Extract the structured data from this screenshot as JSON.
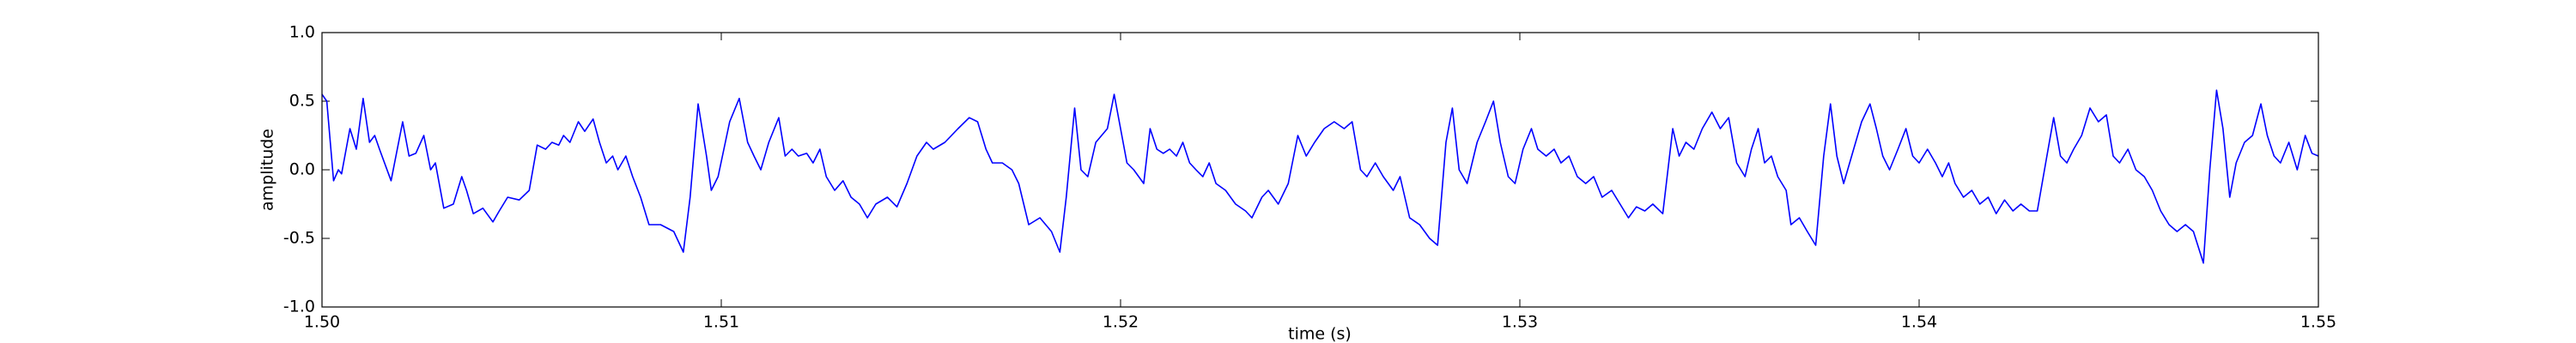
{
  "chart_data": {
    "type": "line",
    "xlabel": "time (s)",
    "ylabel": "amplitude",
    "color": "#0000ff",
    "x": [
      1.5,
      1.50012,
      1.50029,
      1.50041,
      1.50049,
      1.5007,
      1.50086,
      1.50103,
      1.50119,
      1.50132,
      1.50144,
      1.50173,
      1.50202,
      1.50218,
      1.50235,
      1.50255,
      1.50272,
      1.50284,
      1.50305,
      1.50329,
      1.5035,
      1.50362,
      1.50379,
      1.50403,
      1.50428,
      1.50444,
      1.50465,
      1.50494,
      1.50519,
      1.50539,
      1.5056,
      1.50576,
      1.50593,
      1.50605,
      1.50621,
      1.50642,
      1.50658,
      1.50679,
      1.50695,
      1.50712,
      1.50728,
      1.50741,
      1.50761,
      1.50778,
      1.50798,
      1.50819,
      1.50848,
      1.50881,
      1.50905,
      1.50922,
      1.50942,
      1.50963,
      1.50975,
      1.50992,
      1.51021,
      1.51045,
      1.51066,
      1.51082,
      1.51099,
      1.51119,
      1.51144,
      1.5116,
      1.51177,
      1.51193,
      1.51214,
      1.5123,
      1.51247,
      1.51263,
      1.51284,
      1.51305,
      1.51325,
      1.51346,
      1.51366,
      1.51387,
      1.51416,
      1.5144,
      1.51465,
      1.5149,
      1.51514,
      1.51531,
      1.5156,
      1.51593,
      1.51621,
      1.51642,
      1.51663,
      1.51679,
      1.51704,
      1.51728,
      1.51745,
      1.5177,
      1.51798,
      1.51827,
      1.51848,
      1.51864,
      1.51885,
      1.51901,
      1.51918,
      1.51938,
      1.51967,
      1.51984,
      1.52,
      1.52016,
      1.52033,
      1.52058,
      1.52074,
      1.52091,
      1.52107,
      1.52123,
      1.5214,
      1.52156,
      1.52173,
      1.52189,
      1.52206,
      1.52222,
      1.52239,
      1.52263,
      1.52288,
      1.52313,
      1.52329,
      1.52354,
      1.5237,
      1.52395,
      1.5242,
      1.52444,
      1.52465,
      1.52486,
      1.5251,
      1.52535,
      1.5256,
      1.5258,
      1.52601,
      1.52617,
      1.52638,
      1.52658,
      1.52683,
      1.527,
      1.52724,
      1.52749,
      1.52774,
      1.52794,
      1.52815,
      1.52831,
      1.52848,
      1.52868,
      1.52893,
      1.52914,
      1.52934,
      1.52951,
      1.52971,
      1.52988,
      1.53008,
      1.53029,
      1.53045,
      1.53066,
      1.53086,
      1.53103,
      1.53123,
      1.53144,
      1.53165,
      1.53185,
      1.53206,
      1.5323,
      1.53251,
      1.53272,
      1.53292,
      1.53313,
      1.53333,
      1.53358,
      1.53383,
      1.53399,
      1.53416,
      1.53436,
      1.53457,
      1.53481,
      1.53502,
      1.53523,
      1.53543,
      1.53564,
      1.5358,
      1.53597,
      1.53613,
      1.5363,
      1.53646,
      1.53667,
      1.53679,
      1.537,
      1.5372,
      1.53741,
      1.53761,
      1.53778,
      1.53794,
      1.53811,
      1.53831,
      1.53856,
      1.53877,
      1.53893,
      1.53909,
      1.53926,
      1.53947,
      1.53967,
      1.53984,
      1.54,
      1.54021,
      1.54041,
      1.54058,
      1.54074,
      1.5409,
      1.54111,
      1.54132,
      1.54152,
      1.54173,
      1.54193,
      1.54214,
      1.54235,
      1.54255,
      1.54276,
      1.54296,
      1.54317,
      1.54337,
      1.54354,
      1.5437,
      1.54387,
      1.54407,
      1.54428,
      1.54449,
      1.54469,
      1.54486,
      1.54502,
      1.54523,
      1.54543,
      1.54564,
      1.54584,
      1.54605,
      1.54626,
      1.54646,
      1.54667,
      1.54687,
      1.54712,
      1.54728,
      1.54745,
      1.54761,
      1.54778,
      1.54794,
      1.54815,
      1.54835,
      1.54856,
      1.54872,
      1.54889,
      1.54905,
      1.54926,
      1.54947,
      1.54967,
      1.54984,
      1.55
    ],
    "values": [
      0.55,
      0.5,
      -0.08,
      0.0,
      -0.03,
      0.3,
      0.15,
      0.52,
      0.2,
      0.25,
      0.15,
      -0.08,
      0.35,
      0.1,
      0.12,
      0.25,
      0.0,
      0.05,
      -0.28,
      -0.25,
      -0.05,
      -0.15,
      -0.32,
      -0.28,
      -0.38,
      -0.3,
      -0.2,
      -0.22,
      -0.15,
      0.18,
      0.15,
      0.2,
      0.18,
      0.25,
      0.2,
      0.35,
      0.28,
      0.37,
      0.2,
      0.05,
      0.1,
      0.0,
      0.1,
      -0.05,
      -0.2,
      -0.4,
      -0.4,
      -0.45,
      -0.6,
      -0.2,
      0.48,
      0.1,
      -0.15,
      -0.05,
      0.35,
      0.52,
      0.2,
      0.1,
      0.0,
      0.2,
      0.38,
      0.1,
      0.15,
      0.1,
      0.12,
      0.05,
      0.15,
      -0.05,
      -0.15,
      -0.08,
      -0.2,
      -0.25,
      -0.35,
      -0.25,
      -0.2,
      -0.27,
      -0.1,
      0.1,
      0.2,
      0.15,
      0.2,
      0.3,
      0.38,
      0.35,
      0.15,
      0.05,
      0.05,
      0.0,
      -0.1,
      -0.4,
      -0.35,
      -0.45,
      -0.6,
      -0.2,
      0.45,
      0.0,
      -0.05,
      0.2,
      0.3,
      0.55,
      0.3,
      0.05,
      0.0,
      -0.1,
      0.3,
      0.15,
      0.12,
      0.15,
      0.1,
      0.2,
      0.05,
      0.0,
      -0.05,
      0.05,
      -0.1,
      -0.15,
      -0.25,
      -0.3,
      -0.35,
      -0.2,
      -0.15,
      -0.25,
      -0.1,
      0.25,
      0.1,
      0.2,
      0.3,
      0.35,
      0.3,
      0.35,
      0.0,
      -0.05,
      0.05,
      -0.05,
      -0.15,
      -0.05,
      -0.35,
      -0.4,
      -0.5,
      -0.55,
      0.2,
      0.45,
      0.0,
      -0.1,
      0.2,
      0.35,
      0.5,
      0.2,
      -0.05,
      -0.1,
      0.15,
      0.3,
      0.15,
      0.1,
      0.15,
      0.05,
      0.1,
      -0.05,
      -0.1,
      -0.05,
      -0.2,
      -0.15,
      -0.25,
      -0.35,
      -0.27,
      -0.3,
      -0.25,
      -0.32,
      0.3,
      0.1,
      0.2,
      0.15,
      0.3,
      0.42,
      0.3,
      0.38,
      0.05,
      -0.05,
      0.15,
      0.3,
      0.05,
      0.1,
      -0.05,
      -0.15,
      -0.4,
      -0.35,
      -0.45,
      -0.55,
      0.1,
      0.48,
      0.1,
      -0.1,
      0.1,
      0.35,
      0.48,
      0.3,
      0.1,
      0.0,
      0.15,
      0.3,
      0.1,
      0.05,
      0.15,
      0.05,
      -0.05,
      0.05,
      -0.1,
      -0.2,
      -0.15,
      -0.25,
      -0.2,
      -0.32,
      -0.22,
      -0.3,
      -0.25,
      -0.3,
      -0.3,
      0.05,
      0.38,
      0.1,
      0.05,
      0.15,
      0.25,
      0.45,
      0.35,
      0.4,
      0.1,
      0.05,
      0.15,
      0.0,
      -0.05,
      -0.15,
      -0.3,
      -0.4,
      -0.45,
      -0.4,
      -0.45,
      -0.68,
      0.0,
      0.58,
      0.3,
      -0.2,
      0.05,
      0.2,
      0.25,
      0.48,
      0.25,
      0.1,
      0.05,
      0.2,
      0.0,
      0.25,
      0.12,
      0.1
    ],
    "xlim": [
      1.5,
      1.55
    ],
    "xticks": [
      {
        "value": 1.5,
        "label": "1.50"
      },
      1.51,
      1.52,
      1.53,
      1.54,
      1.55
    ],
    "ylim": [
      -1,
      1
    ],
    "yticks": [
      {
        "value": -1,
        "label": "-1.0"
      },
      -0.5,
      {
        "value": 0,
        "label": "0.0"
      },
      0.5,
      {
        "value": 1,
        "label": "1.0"
      }
    ],
    "grid": false
  }
}
